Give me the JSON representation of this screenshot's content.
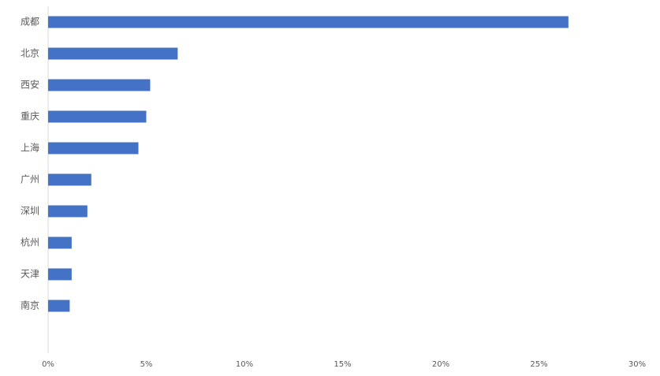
{
  "chart_data": {
    "type": "hbar",
    "categories": [
      "成都",
      "北京",
      "西安",
      "重庆",
      "上海",
      "广州",
      "深圳",
      "杭州",
      "天津",
      "南京"
    ],
    "values": [
      26.5,
      6.6,
      5.2,
      5.0,
      4.6,
      2.2,
      2.0,
      1.2,
      1.2,
      1.1
    ],
    "color": "#4472c4",
    "xlim": [
      0,
      30
    ],
    "xticks": [
      {
        "value": 0,
        "label": "0%"
      },
      {
        "value": 5,
        "label": "5%"
      },
      {
        "value": 10,
        "label": "10%"
      },
      {
        "value": 15,
        "label": "15%"
      },
      {
        "value": 20,
        "label": "20%"
      },
      {
        "value": 25,
        "label": "25%"
      },
      {
        "value": 30,
        "label": "30%"
      }
    ],
    "grid": false
  }
}
